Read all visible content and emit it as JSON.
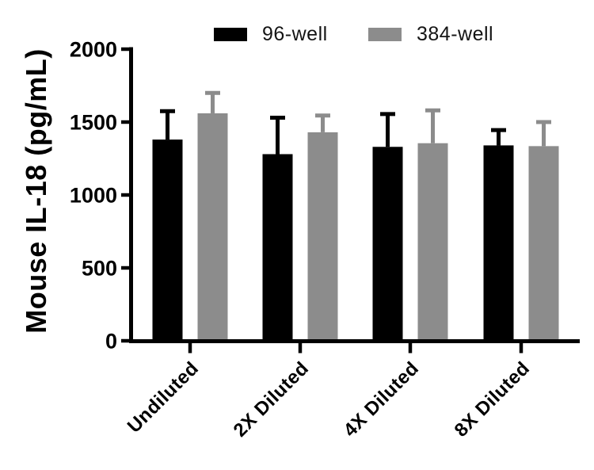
{
  "figure": {
    "background": "#ffffff",
    "axis_color": "#000000",
    "text_color": "#000000"
  },
  "legend": {
    "items": [
      {
        "label": "96-well",
        "color": "#000000"
      },
      {
        "label": "384-well",
        "color": "#8c8c8c"
      }
    ]
  },
  "chart_data": {
    "type": "bar",
    "title": "",
    "xlabel": "",
    "ylabel": "Mouse IL-18 (pg/mL)",
    "ylim": [
      0,
      2000
    ],
    "yticks": [
      0,
      500,
      1000,
      1500,
      2000
    ],
    "grid": false,
    "legend_position": "top-center",
    "error_bars": "upper only",
    "categories": [
      "Undiluted",
      "2X Diluted",
      "4X Diluted",
      "8X Diluted"
    ],
    "series": [
      {
        "name": "96-well",
        "color": "#000000",
        "values": [
          1380,
          1280,
          1330,
          1340
        ],
        "error_up": [
          195,
          250,
          225,
          105
        ]
      },
      {
        "name": "384-well",
        "color": "#8c8c8c",
        "values": [
          1560,
          1430,
          1355,
          1335
        ],
        "error_up": [
          140,
          115,
          225,
          165
        ]
      }
    ]
  }
}
